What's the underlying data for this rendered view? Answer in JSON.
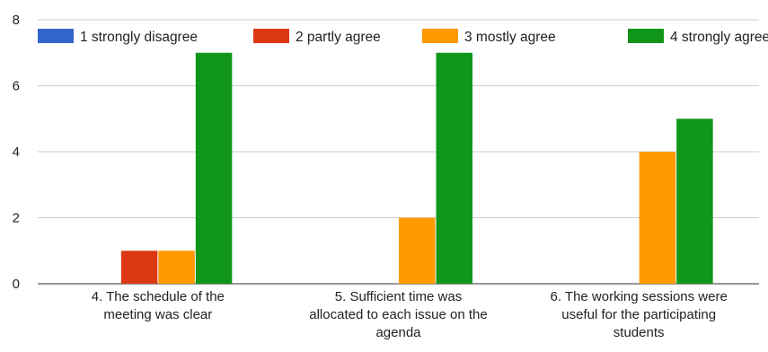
{
  "chart_data": {
    "type": "bar",
    "title": "",
    "xlabel": "",
    "ylabel": "",
    "ylim": [
      0,
      8
    ],
    "yticks": [
      0,
      2,
      4,
      6,
      8
    ],
    "grid": true,
    "legend_position": "top",
    "categories": [
      "4. The schedule of the meeting was clear",
      "5. Sufficient time was allocated to each issue on the agenda",
      "6. The working sessions were useful for the participating students"
    ],
    "category_lines": [
      [
        "4. The schedule of the",
        "meeting was clear"
      ],
      [
        "5. Sufficient time was",
        "allocated to each issue on the",
        "agenda"
      ],
      [
        "6. The working sessions were",
        "useful for the participating",
        "students"
      ]
    ],
    "series": [
      {
        "name": "1 strongly disagree",
        "color": "#3366cc",
        "values": [
          0,
          0,
          0
        ]
      },
      {
        "name": "2 partly agree",
        "color": "#dc3912",
        "values": [
          1,
          0,
          0
        ]
      },
      {
        "name": "3 mostly agree",
        "color": "#ff9900",
        "values": [
          1,
          2,
          4
        ]
      },
      {
        "name": "4 strongly agree",
        "color": "#109618",
        "values": [
          7,
          7,
          5
        ]
      }
    ]
  }
}
